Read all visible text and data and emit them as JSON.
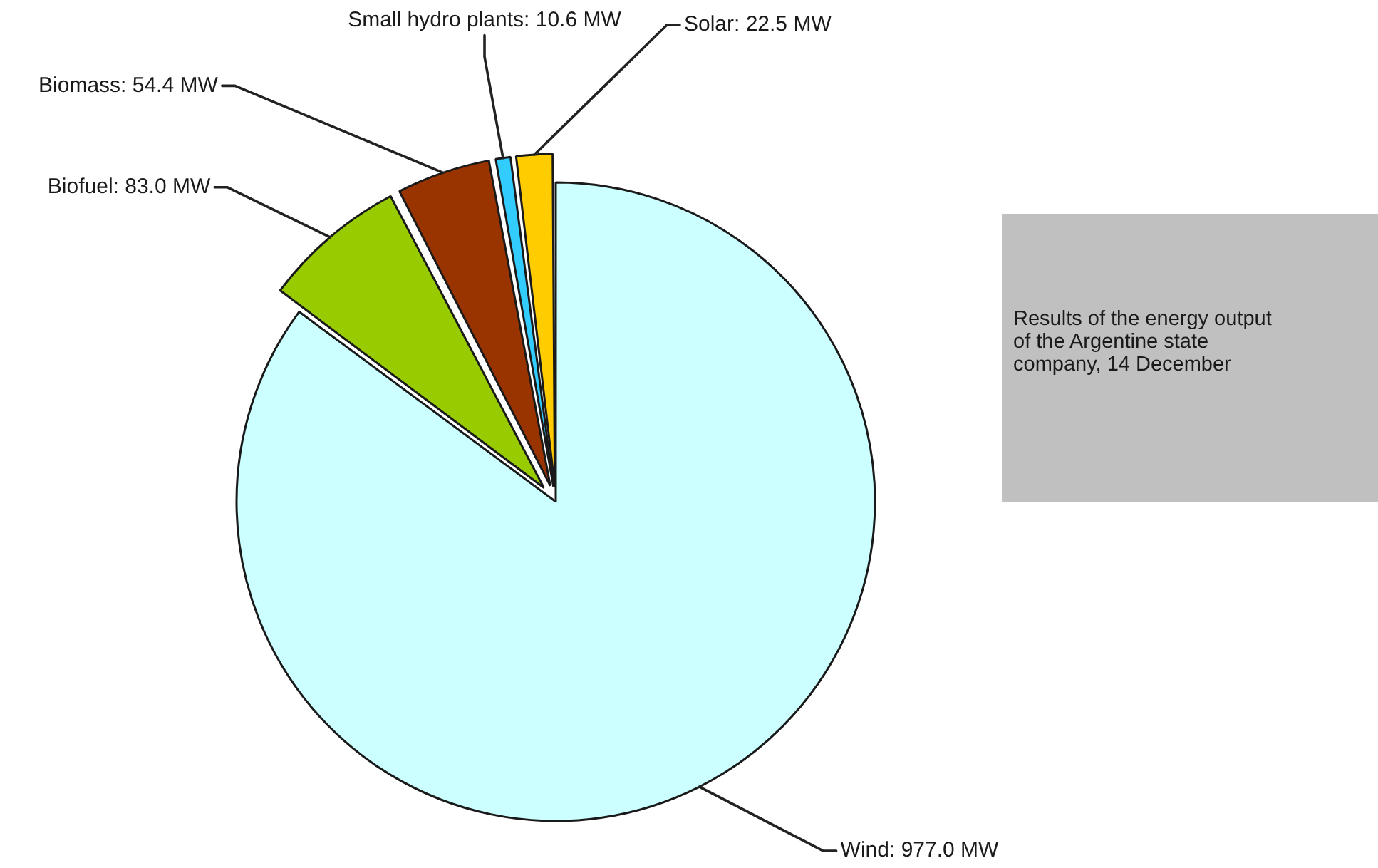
{
  "chart_data": {
    "type": "pie",
    "categories": [
      "Wind",
      "Biofuel",
      "Biomass",
      "Small hydro plants",
      "Solar"
    ],
    "values": [
      977.0,
      83.0,
      54.4,
      10.6,
      22.5
    ],
    "colors": [
      "#ccffff",
      "#99cc00",
      "#993300",
      "#33ccff",
      "#ffcc00"
    ],
    "value_labels": [
      "977.0 MW",
      "83.0 MW",
      "54.4 MW",
      "10.6 MW",
      "22.5 MW"
    ],
    "legend": false,
    "annotations": [
      "Results of the energy output\nof the Argentine state\ncompany, 14 December"
    ]
  }
}
